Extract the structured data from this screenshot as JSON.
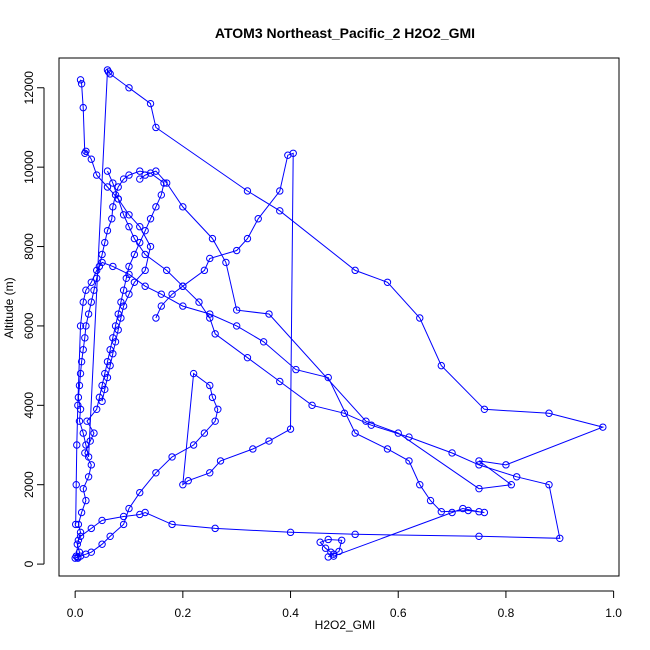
{
  "chart_data": {
    "type": "line",
    "title": "ATOM3 Northeast_Pacific_2 H2O2_GMI",
    "xlabel": "H2O2_GMI",
    "ylabel": "Altitude (m)",
    "xlim": [
      -0.03,
      1.01
    ],
    "ylim": [
      -300,
      12750
    ],
    "x_ticks": [
      0.0,
      0.2,
      0.4,
      0.6,
      0.8,
      1.0
    ],
    "x_tick_labels": [
      "0.0",
      "0.2",
      "0.4",
      "0.6",
      "0.8",
      "1.0"
    ],
    "y_ticks": [
      0,
      2000,
      4000,
      6000,
      8000,
      10000,
      12000
    ],
    "y_tick_labels": [
      "0",
      "2000",
      "4000",
      "6000",
      "8000",
      "10000",
      "12000"
    ],
    "grid": false,
    "legend": "none",
    "marker": "open-circle",
    "color": "#0000ff",
    "series": [
      {
        "x": [
          0.005,
          0.008,
          0.004,
          0.01,
          0.006,
          0.012,
          0.02,
          0.015,
          0.025,
          0.03,
          0.018,
          0.028,
          0.035,
          0.022,
          0.04,
          0.045,
          0.05,
          0.055,
          0.06,
          0.065,
          0.07,
          0.075,
          0.08,
          0.085,
          0.09,
          0.095,
          0.1,
          0.11,
          0.12,
          0.13,
          0.14,
          0.15,
          0.16,
          0.165,
          0.14,
          0.12,
          0.1,
          0.09,
          0.08,
          0.075,
          0.07,
          0.068,
          0.06,
          0.055,
          0.05,
          0.045,
          0.04,
          0.035,
          0.03,
          0.025,
          0.02,
          0.018,
          0.015,
          0.012,
          0.01,
          0.008,
          0.006,
          0.01,
          0.008,
          0.015,
          0.02,
          0.025,
          0.06,
          0.062,
          0.065,
          0.1,
          0.14,
          0.15,
          0.32,
          0.38,
          0.52,
          0.58,
          0.64,
          0.68,
          0.76,
          0.88,
          0.98,
          0.8,
          0.75,
          0.81,
          0.75,
          0.6,
          0.54,
          0.36,
          0.3,
          0.28,
          0.255,
          0.2,
          0.17,
          0.15,
          0.13,
          0.12
        ],
        "y": [
          150,
          300,
          500,
          800,
          1000,
          1300,
          1600,
          1900,
          2200,
          2500,
          2800,
          3100,
          3300,
          3600,
          3900,
          4200,
          4500,
          4800,
          5100,
          5400,
          5700,
          6000,
          6300,
          6600,
          6900,
          7200,
          7500,
          7800,
          8100,
          8400,
          8700,
          9000,
          9300,
          9600,
          9850,
          9900,
          9800,
          9700,
          9500,
          9300,
          9000,
          8700,
          8400,
          8100,
          7800,
          7500,
          7200,
          6900,
          6600,
          6300,
          6000,
          5700,
          5400,
          5100,
          4800,
          4500,
          4200,
          3900,
          3600,
          3300,
          3000,
          2700,
          12450,
          12400,
          12350,
          12000,
          11600,
          11000,
          9400,
          8900,
          7400,
          7100,
          6200,
          5000,
          3900,
          3800,
          3450,
          2500,
          2600,
          2000,
          1900,
          3300,
          3600,
          6300,
          6400,
          7600,
          8200,
          9000,
          9600,
          9900,
          9800,
          9700
        ]
      },
      {
        "x": [
          0.0,
          0.005,
          0.01,
          0.02,
          0.03,
          0.05,
          0.065,
          0.09,
          0.1,
          0.12,
          0.15,
          0.18,
          0.22,
          0.24,
          0.26,
          0.265,
          0.255,
          0.25,
          0.22,
          0.2,
          0.21,
          0.25,
          0.27,
          0.33,
          0.36,
          0.4,
          0.405,
          0.395,
          0.38,
          0.34,
          0.32,
          0.3,
          0.25,
          0.24,
          0.2,
          0.18,
          0.16,
          0.15
        ],
        "y": [
          150,
          180,
          200,
          250,
          300,
          500,
          700,
          1000,
          1400,
          1800,
          2300,
          2700,
          3000,
          3300,
          3600,
          3900,
          4200,
          4500,
          4800,
          2000,
          2100,
          2300,
          2600,
          2900,
          3100,
          3400,
          10350,
          10300,
          9400,
          8700,
          8200,
          7900,
          7700,
          7400,
          7000,
          6800,
          6500,
          6200
        ]
      },
      {
        "x": [
          0.47,
          0.48,
          0.49,
          0.495,
          0.47,
          0.455,
          0.465,
          0.475,
          0.48,
          0.7,
          0.72,
          0.75,
          0.76,
          0.73,
          0.68,
          0.66,
          0.64,
          0.62,
          0.58,
          0.52,
          0.47,
          0.41,
          0.35,
          0.3,
          0.25,
          0.2,
          0.16,
          0.13,
          0.1,
          0.07,
          0.05,
          0.04,
          0.03,
          0.02,
          0.015,
          0.01,
          0.005,
          0.003,
          0.002,
          0.001
        ],
        "y": [
          180,
          250,
          320,
          600,
          620,
          550,
          400,
          300,
          200,
          1300,
          1400,
          1320,
          1300,
          1350,
          1320,
          1600,
          2000,
          2600,
          2900,
          3300,
          4700,
          4900,
          5600,
          6000,
          6300,
          6500,
          6800,
          7000,
          7300,
          7500,
          7600,
          7400,
          7100,
          6900,
          6600,
          6000,
          4000,
          3000,
          2000,
          1000
        ]
      },
      {
        "x": [
          0.002,
          0.006,
          0.01,
          0.03,
          0.05,
          0.09,
          0.12,
          0.13,
          0.18,
          0.26,
          0.4,
          0.52,
          0.75,
          0.9,
          0.88,
          0.82,
          0.75,
          0.7,
          0.62,
          0.55,
          0.5,
          0.44,
          0.38,
          0.32,
          0.26,
          0.25,
          0.23,
          0.2,
          0.17,
          0.13,
          0.11,
          0.1,
          0.09,
          0.08,
          0.07,
          0.06
        ],
        "y": [
          200,
          600,
          700,
          900,
          1100,
          1200,
          1250,
          1300,
          1000,
          900,
          800,
          750,
          700,
          650,
          2000,
          2200,
          2500,
          2800,
          3200,
          3500,
          3800,
          4000,
          4600,
          5200,
          5800,
          6200,
          6600,
          7000,
          7400,
          7800,
          8200,
          8500,
          8800,
          9200,
          9600,
          9900
        ]
      },
      {
        "x": [
          0.01,
          0.012,
          0.015,
          0.018,
          0.02,
          0.03,
          0.04,
          0.06,
          0.08,
          0.1,
          0.12,
          0.14,
          0.13,
          0.11,
          0.1,
          0.09,
          0.085,
          0.08,
          0.075,
          0.07,
          0.065,
          0.06,
          0.055,
          0.05
        ],
        "y": [
          12200,
          12100,
          11500,
          10350,
          10400,
          10200,
          9800,
          9500,
          9200,
          8800,
          8500,
          8000,
          7400,
          7100,
          6800,
          6500,
          6200,
          5900,
          5600,
          5300,
          5000,
          4700,
          4400,
          4100
        ]
      }
    ]
  }
}
